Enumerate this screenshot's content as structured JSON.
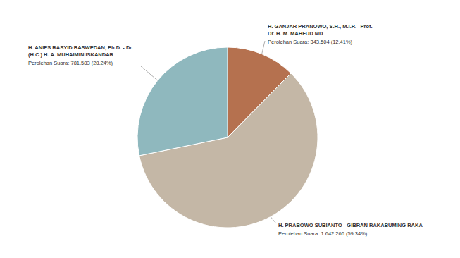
{
  "chart_data": {
    "type": "pie",
    "categories": [
      "H. GANJAR PRANOWO, S.H., M.I.P. - Prof. Dr. H. M. MAHFUD MD",
      "H. PRABOWO SUBIANTO - GIBRAN RAKABUMING RAKA",
      "H. ANIES RASYID BASWEDAN, Ph.D. - Dr. (H.C.) H. A. MUHAIMIN ISKANDAR"
    ],
    "values": [
      343504,
      1642266,
      781583
    ],
    "value_labels": [
      "Perolehan Suara: 343.504 (12.41%)",
      "Perolehan Suara: 1.642.266 (59.34%)",
      "Perolehan Suara: 781.583 (28.24%)"
    ],
    "colors": [
      "#b5714f",
      "#c4b7a6",
      "#8fb8be"
    ],
    "data_labels": true
  }
}
